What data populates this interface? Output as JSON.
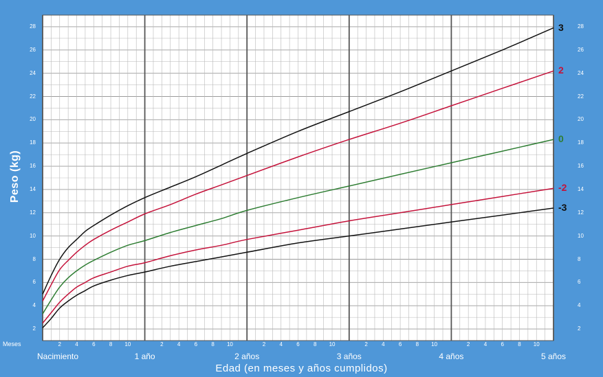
{
  "chart_data": {
    "type": "line",
    "xlabel": "Edad (en meses y años cumplidos)",
    "ylabel": "Peso (kg)",
    "month_axis_label": "Meses",
    "x_unit": "months",
    "xlim": [
      0,
      60
    ],
    "ylim": [
      1,
      29
    ],
    "y_ticks": [
      2,
      4,
      6,
      8,
      10,
      12,
      14,
      16,
      18,
      20,
      22,
      24,
      26,
      28
    ],
    "month_tick_labels": [
      "2",
      "4",
      "6",
      "8",
      "10"
    ],
    "year_labels": [
      {
        "month": 0,
        "text": "Nacimiento"
      },
      {
        "month": 12,
        "text": "1 año"
      },
      {
        "month": 24,
        "text": "2 años"
      },
      {
        "month": 36,
        "text": "3 años"
      },
      {
        "month": 48,
        "text": "4 años"
      },
      {
        "month": 60,
        "text": "5 años"
      }
    ],
    "grid": true,
    "x": [
      0,
      1,
      2,
      3,
      4,
      5,
      6,
      8,
      10,
      12,
      15,
      18,
      21,
      24,
      30,
      36,
      42,
      48,
      54,
      60
    ],
    "series": [
      {
        "name": "3",
        "color": "#111111",
        "values": [
          5.0,
          6.6,
          8.0,
          9.0,
          9.7,
          10.4,
          10.9,
          11.8,
          12.6,
          13.3,
          14.2,
          15.1,
          16.1,
          17.1,
          19.0,
          20.7,
          22.4,
          24.2,
          26.0,
          27.9
        ]
      },
      {
        "name": "2",
        "color": "#c4123a",
        "values": [
          4.4,
          5.8,
          7.1,
          7.9,
          8.6,
          9.2,
          9.7,
          10.5,
          11.2,
          11.9,
          12.7,
          13.6,
          14.4,
          15.2,
          16.8,
          18.3,
          19.7,
          21.2,
          22.7,
          24.2
        ]
      },
      {
        "name": "0",
        "color": "#2e7d32",
        "values": [
          3.3,
          4.5,
          5.6,
          6.4,
          7.0,
          7.5,
          7.9,
          8.6,
          9.2,
          9.6,
          10.3,
          10.9,
          11.5,
          12.2,
          13.3,
          14.3,
          15.3,
          16.3,
          17.3,
          18.3
        ]
      },
      {
        "name": "-2",
        "color": "#c4123a",
        "values": [
          2.5,
          3.4,
          4.3,
          5.0,
          5.6,
          6.0,
          6.4,
          6.9,
          7.4,
          7.7,
          8.3,
          8.8,
          9.2,
          9.7,
          10.5,
          11.3,
          12.0,
          12.7,
          13.4,
          14.1
        ]
      },
      {
        "name": "-3",
        "color": "#111111",
        "values": [
          2.1,
          2.9,
          3.8,
          4.4,
          4.9,
          5.3,
          5.7,
          6.2,
          6.6,
          6.9,
          7.4,
          7.8,
          8.2,
          8.6,
          9.4,
          10.0,
          10.6,
          11.2,
          11.8,
          12.4
        ]
      }
    ]
  }
}
